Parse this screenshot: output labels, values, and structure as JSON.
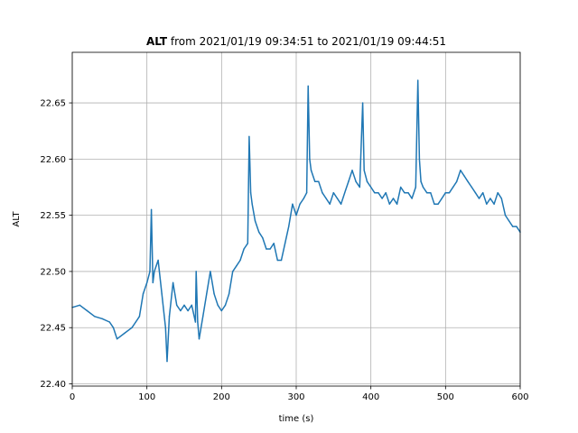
{
  "chart_data": {
    "type": "line",
    "title_bold": "ALT",
    "title_rest": " from 2021/01/19 09:34:51 to 2021/01/19 09:44:51",
    "xlabel": "time (s)",
    "ylabel": "ALT",
    "xlim": [
      0,
      600
    ],
    "ylim": [
      22.398,
      22.695
    ],
    "grid": true,
    "line_color": "#1f77b4",
    "x_ticks": [
      {
        "value": 0,
        "label": "0"
      },
      {
        "value": 100,
        "label": "100"
      },
      {
        "value": 200,
        "label": "200"
      },
      {
        "value": 300,
        "label": "300"
      },
      {
        "value": 400,
        "label": "400"
      },
      {
        "value": 500,
        "label": "500"
      },
      {
        "value": 600,
        "label": "600"
      }
    ],
    "y_ticks": [
      {
        "value": 22.4,
        "label": "22.40"
      },
      {
        "value": 22.45,
        "label": "22.45"
      },
      {
        "value": 22.5,
        "label": "22.50"
      },
      {
        "value": 22.55,
        "label": "22.55"
      },
      {
        "value": 22.6,
        "label": "22.60"
      },
      {
        "value": 22.65,
        "label": "22.65"
      }
    ],
    "series": [
      {
        "x": [
          0,
          10,
          20,
          30,
          40,
          50,
          55,
          60,
          70,
          80,
          85,
          90,
          95,
          100,
          104,
          106,
          108,
          110,
          115,
          120,
          125,
          127,
          130,
          135,
          140,
          145,
          150,
          155,
          160,
          165,
          166,
          168,
          170,
          175,
          180,
          185,
          190,
          195,
          200,
          205,
          210,
          215,
          220,
          225,
          230,
          235,
          237,
          239,
          241,
          245,
          250,
          255,
          260,
          265,
          270,
          275,
          280,
          285,
          290,
          295,
          300,
          305,
          310,
          314,
          316,
          318,
          320,
          325,
          330,
          335,
          340,
          345,
          350,
          355,
          360,
          365,
          370,
          375,
          380,
          385,
          389,
          391,
          395,
          400,
          405,
          410,
          415,
          420,
          425,
          430,
          435,
          440,
          445,
          450,
          455,
          460,
          463,
          465,
          467,
          470,
          475,
          480,
          485,
          490,
          495,
          500,
          505,
          510,
          515,
          520,
          525,
          530,
          535,
          540,
          545,
          550,
          555,
          560,
          565,
          570,
          575,
          580,
          585,
          590,
          595,
          600
        ],
        "y": [
          22.468,
          22.47,
          22.465,
          22.46,
          22.458,
          22.455,
          22.45,
          22.44,
          22.445,
          22.45,
          22.455,
          22.46,
          22.48,
          22.49,
          22.5,
          22.555,
          22.49,
          22.5,
          22.51,
          22.48,
          22.45,
          22.42,
          22.46,
          22.49,
          22.47,
          22.465,
          22.47,
          22.465,
          22.47,
          22.455,
          22.5,
          22.455,
          22.44,
          22.46,
          22.48,
          22.5,
          22.48,
          22.47,
          22.465,
          22.47,
          22.48,
          22.5,
          22.505,
          22.51,
          22.52,
          22.525,
          22.62,
          22.57,
          22.56,
          22.545,
          22.535,
          22.53,
          22.52,
          22.52,
          22.525,
          22.51,
          22.51,
          22.525,
          22.54,
          22.56,
          22.55,
          22.56,
          22.565,
          22.57,
          22.665,
          22.6,
          22.59,
          22.58,
          22.58,
          22.57,
          22.565,
          22.56,
          22.57,
          22.565,
          22.56,
          22.57,
          22.58,
          22.59,
          22.58,
          22.575,
          22.65,
          22.59,
          22.58,
          22.575,
          22.57,
          22.57,
          22.565,
          22.57,
          22.56,
          22.565,
          22.56,
          22.575,
          22.57,
          22.57,
          22.565,
          22.575,
          22.67,
          22.6,
          22.58,
          22.575,
          22.57,
          22.57,
          22.56,
          22.56,
          22.565,
          22.57,
          22.57,
          22.575,
          22.58,
          22.59,
          22.585,
          22.58,
          22.575,
          22.57,
          22.565,
          22.57,
          22.56,
          22.565,
          22.56,
          22.57,
          22.565,
          22.55,
          22.545,
          22.54,
          22.54,
          22.535
        ]
      }
    ]
  }
}
